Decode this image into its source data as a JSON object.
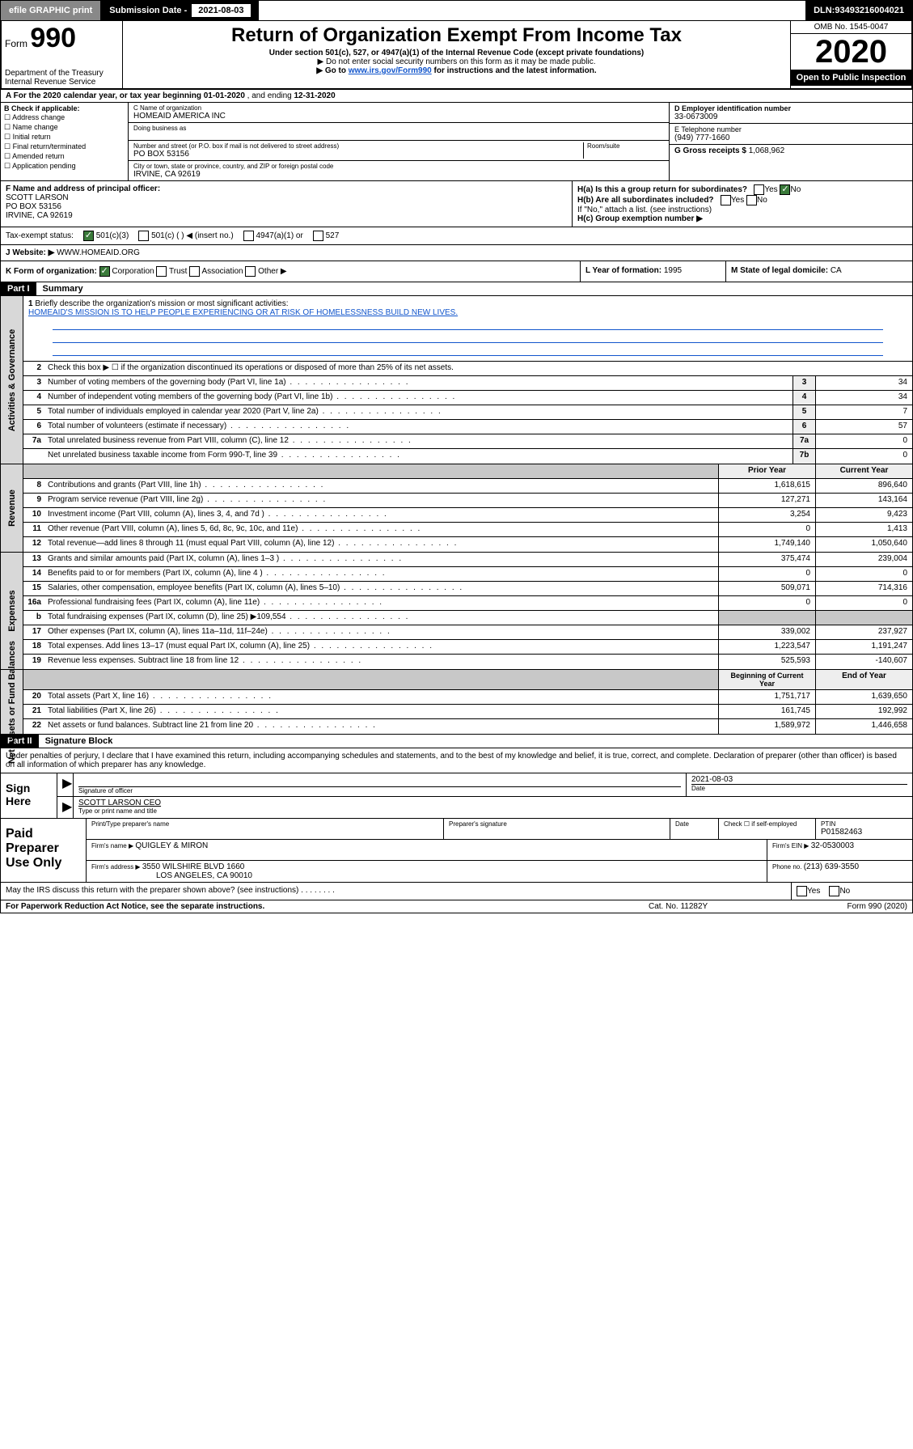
{
  "topbar": {
    "efile_btn": "efile GRAPHIC print",
    "sub_date_label": "Submission Date - ",
    "sub_date": "2021-08-03",
    "dln_label": "DLN: ",
    "dln": "93493216004021"
  },
  "header": {
    "form_prefix": "Form",
    "form_number": "990",
    "dept": "Department of the Treasury\nInternal Revenue Service",
    "title": "Return of Organization Exempt From Income Tax",
    "subtitle": "Under section 501(c), 527, or 4947(a)(1) of the Internal Revenue Code (except private foundations)",
    "note1": "▶ Do not enter social security numbers on this form as it may be made public.",
    "note2_pre": "▶ Go to ",
    "note2_link": "www.irs.gov/Form990",
    "note2_post": " for instructions and the latest information.",
    "omb": "OMB No. 1545-0047",
    "year": "2020",
    "open_public": "Open to Public Inspection"
  },
  "row_a": {
    "text_pre": "A For the 2020 calendar year, or tax year beginning ",
    "begin": "01-01-2020",
    "mid": " , and ending ",
    "end": "12-31-2020"
  },
  "col_b": {
    "label": "B Check if applicable:",
    "opts": [
      "Address change",
      "Name change",
      "Initial return",
      "Final return/terminated",
      "Amended return",
      "Application pending"
    ]
  },
  "col_c": {
    "name_label": "C Name of organization",
    "name": "HOMEAID AMERICA INC",
    "dba_label": "Doing business as",
    "dba": "",
    "addr_label": "Number and street (or P.O. box if mail is not delivered to street address)",
    "addr": "PO BOX 53156",
    "room_label": "Room/suite",
    "city_label": "City or town, state or province, country, and ZIP or foreign postal code",
    "city": "IRVINE, CA  92619"
  },
  "col_d": {
    "ein_label": "D Employer identification number",
    "ein": "33-0673009",
    "phone_label": "E Telephone number",
    "phone": "(949) 777-1660",
    "gross_label": "G Gross receipts $ ",
    "gross": "1,068,962"
  },
  "row_f": {
    "label": "F Name and address of principal officer:",
    "name": "SCOTT LARSON",
    "addr1": "PO BOX 53156",
    "addr2": "IRVINE, CA  92619"
  },
  "row_h": {
    "ha_label": "H(a)  Is this a group return for subordinates?",
    "ha_yes": "Yes",
    "ha_no": "No",
    "hb_label": "H(b)  Are all subordinates included?",
    "hb_yes": "Yes",
    "hb_no": "No",
    "hb_note": "If \"No,\" attach a list. (see instructions)",
    "hc_label": "H(c)  Group exemption number ▶"
  },
  "tax_status": {
    "label": "Tax-exempt status:",
    "o1": "501(c)(3)",
    "o2": "501(c) (   ) ◀ (insert no.)",
    "o3": "4947(a)(1) or",
    "o4": "527"
  },
  "row_j": {
    "label": "J   Website: ▶ ",
    "value": "WWW.HOMEAID.ORG"
  },
  "row_klm": {
    "k_label": "K Form of organization:",
    "k_opts": [
      "Corporation",
      "Trust",
      "Association",
      "Other ▶"
    ],
    "l_label": "L Year of formation: ",
    "l_val": "1995",
    "m_label": "M State of legal domicile: ",
    "m_val": "CA"
  },
  "parts": {
    "p1": "Part I",
    "p1_title": "Summary",
    "p2": "Part II",
    "p2_title": "Signature Block"
  },
  "side_tabs": {
    "gov": "Activities & Governance",
    "rev": "Revenue",
    "exp": "Expenses",
    "net": "Net Assets or Fund Balances"
  },
  "summary": {
    "l1_label": "Briefly describe the organization's mission or most significant activities:",
    "l1_text": "HOMEAID'S MISSION IS TO HELP PEOPLE EXPERIENCING OR AT RISK OF HOMELESSNESS BUILD NEW LIVES.",
    "l2_label": "Check this box ▶ ☐ if the organization discontinued its operations or disposed of more than 25% of its net assets.",
    "lines_gov": [
      {
        "n": "3",
        "d": "Number of voting members of the governing body (Part VI, line 1a)",
        "box": "3",
        "v": "34"
      },
      {
        "n": "4",
        "d": "Number of independent voting members of the governing body (Part VI, line 1b)",
        "box": "4",
        "v": "34"
      },
      {
        "n": "5",
        "d": "Total number of individuals employed in calendar year 2020 (Part V, line 2a)",
        "box": "5",
        "v": "7"
      },
      {
        "n": "6",
        "d": "Total number of volunteers (estimate if necessary)",
        "box": "6",
        "v": "57"
      },
      {
        "n": "7a",
        "d": "Total unrelated business revenue from Part VIII, column (C), line 12",
        "box": "7a",
        "v": "0"
      },
      {
        "n": "",
        "d": "Net unrelated business taxable income from Form 990-T, line 39",
        "box": "7b",
        "v": "0"
      }
    ],
    "col_hdr_prior": "Prior Year",
    "col_hdr_current": "Current Year",
    "lines_rev": [
      {
        "n": "8",
        "d": "Contributions and grants (Part VIII, line 1h)",
        "p": "1,618,615",
        "c": "896,640"
      },
      {
        "n": "9",
        "d": "Program service revenue (Part VIII, line 2g)",
        "p": "127,271",
        "c": "143,164"
      },
      {
        "n": "10",
        "d": "Investment income (Part VIII, column (A), lines 3, 4, and 7d )",
        "p": "3,254",
        "c": "9,423"
      },
      {
        "n": "11",
        "d": "Other revenue (Part VIII, column (A), lines 5, 6d, 8c, 9c, 10c, and 11e)",
        "p": "0",
        "c": "1,413"
      },
      {
        "n": "12",
        "d": "Total revenue—add lines 8 through 11 (must equal Part VIII, column (A), line 12)",
        "p": "1,749,140",
        "c": "1,050,640"
      }
    ],
    "lines_exp": [
      {
        "n": "13",
        "d": "Grants and similar amounts paid (Part IX, column (A), lines 1–3 )",
        "p": "375,474",
        "c": "239,004"
      },
      {
        "n": "14",
        "d": "Benefits paid to or for members (Part IX, column (A), line 4 )",
        "p": "0",
        "c": "0"
      },
      {
        "n": "15",
        "d": "Salaries, other compensation, employee benefits (Part IX, column (A), lines 5–10)",
        "p": "509,071",
        "c": "714,316"
      },
      {
        "n": "16a",
        "d": "Professional fundraising fees (Part IX, column (A), line 11e)",
        "p": "0",
        "c": "0"
      },
      {
        "n": "b",
        "d": "Total fundraising expenses (Part IX, column (D), line 25) ▶109,554",
        "p": "",
        "c": ""
      },
      {
        "n": "17",
        "d": "Other expenses (Part IX, column (A), lines 11a–11d, 11f–24e)",
        "p": "339,002",
        "c": "237,927"
      },
      {
        "n": "18",
        "d": "Total expenses. Add lines 13–17 (must equal Part IX, column (A), line 25)",
        "p": "1,223,547",
        "c": "1,191,247"
      },
      {
        "n": "19",
        "d": "Revenue less expenses. Subtract line 18 from line 12",
        "p": "525,593",
        "c": "-140,607"
      }
    ],
    "col_hdr_begin": "Beginning of Current Year",
    "col_hdr_end": "End of Year",
    "lines_net": [
      {
        "n": "20",
        "d": "Total assets (Part X, line 16)",
        "p": "1,751,717",
        "c": "1,639,650"
      },
      {
        "n": "21",
        "d": "Total liabilities (Part X, line 26)",
        "p": "161,745",
        "c": "192,992"
      },
      {
        "n": "22",
        "d": "Net assets or fund balances. Subtract line 21 from line 20",
        "p": "1,589,972",
        "c": "1,446,658"
      }
    ]
  },
  "sig_block_text": "Under penalties of perjury, I declare that I have examined this return, including accompanying schedules and statements, and to the best of my knowledge and belief, it is true, correct, and complete. Declaration of preparer (other than officer) is based on all information of which preparer has any knowledge.",
  "sign_here": {
    "label": "Sign Here",
    "sig_officer_label": "Signature of officer",
    "date_label": "Date",
    "date": "2021-08-03",
    "name": "SCOTT LARSON CEO",
    "name_label": "Type or print name and title"
  },
  "paid": {
    "label": "Paid Preparer Use Only",
    "r1c1_label": "Print/Type preparer's name",
    "r1c2_label": "Preparer's signature",
    "r1c3_label": "Date",
    "r1c4_label_a": "Check ☐ if self-employed",
    "r1c5_label": "PTIN",
    "r1c5_val": "P01582463",
    "r2_label": "Firm's name    ▶ ",
    "r2_val": "QUIGLEY & MIRON",
    "r2b_label": "Firm's EIN ▶ ",
    "r2b_val": "32-0530003",
    "r3_label": "Firm's address ▶ ",
    "r3_val": "3550 WILSHIRE BLVD 1660",
    "r3_val2": "LOS ANGELES, CA  90010",
    "r3b_label": "Phone no. ",
    "r3b_val": "(213) 639-3550"
  },
  "foot": {
    "q": "May the IRS discuss this return with the preparer shown above? (see instructions)",
    "yes": "Yes",
    "no": "No"
  },
  "foot2": {
    "b": "For Paperwork Reduction Act Notice, see the separate instructions.",
    "c": "Cat. No. 11282Y",
    "d": "Form 990 (2020)"
  }
}
